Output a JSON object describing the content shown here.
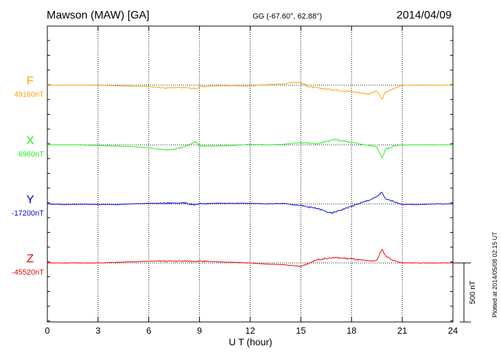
{
  "header": {
    "station": "Mawson (MAW)  [GA]",
    "coords": "GG (-67.60°,  62.88°)",
    "date": "2014/04/09"
  },
  "footer": {
    "xlabel": "U T (hour)",
    "plotted": "Plotted at 2014/05/08 02:15 UT",
    "scale_label": "500 nT"
  },
  "chart_data": {
    "type": "line",
    "xlabel": "U T (hour)",
    "xlim": [
      0,
      24
    ],
    "x_ticks": [
      0,
      3,
      6,
      9,
      12,
      15,
      18,
      21,
      24
    ],
    "grid": "dotted vertical every 3 h, dotted baseline per trace",
    "scale_bar_nT": 500,
    "series": [
      {
        "name": "F",
        "baseline_label": "49160nT",
        "color": "#ffa500",
        "points": [
          [
            0,
            0
          ],
          [
            1,
            0
          ],
          [
            2,
            0
          ],
          [
            3,
            0
          ],
          [
            4,
            -5
          ],
          [
            5,
            -8
          ],
          [
            6,
            -12
          ],
          [
            7,
            -25
          ],
          [
            8,
            -20
          ],
          [
            8.8,
            -30
          ],
          [
            9,
            -15
          ],
          [
            10,
            -5
          ],
          [
            11,
            -5
          ],
          [
            12,
            -8
          ],
          [
            13,
            5
          ],
          [
            14,
            10
          ],
          [
            14.5,
            25
          ],
          [
            15,
            20
          ],
          [
            15.5,
            -15
          ],
          [
            16,
            -25
          ],
          [
            17,
            -40
          ],
          [
            18,
            -55
          ],
          [
            19,
            -75
          ],
          [
            19.5,
            -50
          ],
          [
            19.8,
            -120
          ],
          [
            20,
            -60
          ],
          [
            20.5,
            -30
          ],
          [
            21,
            0
          ],
          [
            22,
            0
          ],
          [
            23,
            0
          ],
          [
            24,
            0
          ]
        ]
      },
      {
        "name": "X",
        "baseline_label": "6960nT",
        "color": "#22ee22",
        "points": [
          [
            0,
            0
          ],
          [
            1,
            0
          ],
          [
            2,
            0
          ],
          [
            3,
            -5
          ],
          [
            4,
            -10
          ],
          [
            5,
            -15
          ],
          [
            6,
            -25
          ],
          [
            7,
            -45
          ],
          [
            7.5,
            -35
          ],
          [
            8,
            -20
          ],
          [
            8.8,
            25
          ],
          [
            9,
            -10
          ],
          [
            10,
            -10
          ],
          [
            11,
            -5
          ],
          [
            12,
            5
          ],
          [
            13,
            0
          ],
          [
            14,
            5
          ],
          [
            15,
            20
          ],
          [
            16,
            10
          ],
          [
            17,
            45
          ],
          [
            18,
            20
          ],
          [
            19,
            -5
          ],
          [
            19.5,
            -20
          ],
          [
            19.8,
            -110
          ],
          [
            20,
            -40
          ],
          [
            20.5,
            -10
          ],
          [
            21,
            0
          ],
          [
            22,
            0
          ],
          [
            23,
            0
          ],
          [
            24,
            0
          ]
        ]
      },
      {
        "name": "Y",
        "baseline_label": "-17200nT",
        "color": "#0000ee",
        "points": [
          [
            0,
            0
          ],
          [
            1,
            -5
          ],
          [
            2,
            -3
          ],
          [
            3,
            -5
          ],
          [
            4,
            -5
          ],
          [
            5,
            0
          ],
          [
            6,
            5
          ],
          [
            7,
            5
          ],
          [
            8,
            10
          ],
          [
            8.8,
            -10
          ],
          [
            9,
            0
          ],
          [
            10,
            5
          ],
          [
            11,
            5
          ],
          [
            12,
            5
          ],
          [
            13,
            0
          ],
          [
            14,
            5
          ],
          [
            15,
            -15
          ],
          [
            16,
            -40
          ],
          [
            16.8,
            -80
          ],
          [
            17.5,
            -45
          ],
          [
            18,
            -20
          ],
          [
            19,
            30
          ],
          [
            19.5,
            60
          ],
          [
            19.8,
            100
          ],
          [
            20,
            40
          ],
          [
            20.5,
            20
          ],
          [
            21,
            -5
          ],
          [
            22,
            -5
          ],
          [
            23,
            0
          ],
          [
            24,
            0
          ]
        ]
      },
      {
        "name": "Z",
        "baseline_label": "-45520nT",
        "color": "#ee0000",
        "points": [
          [
            0,
            0
          ],
          [
            1,
            0
          ],
          [
            2,
            0
          ],
          [
            3,
            0
          ],
          [
            4,
            5
          ],
          [
            5,
            10
          ],
          [
            6,
            15
          ],
          [
            7,
            15
          ],
          [
            8,
            15
          ],
          [
            9,
            15
          ],
          [
            10,
            10
          ],
          [
            11,
            5
          ],
          [
            12,
            0
          ],
          [
            13,
            -10
          ],
          [
            14,
            -15
          ],
          [
            15,
            -30
          ],
          [
            15.5,
            0
          ],
          [
            16,
            30
          ],
          [
            17,
            45
          ],
          [
            18,
            35
          ],
          [
            19,
            15
          ],
          [
            19.5,
            20
          ],
          [
            19.8,
            120
          ],
          [
            20,
            60
          ],
          [
            20.5,
            20
          ],
          [
            21,
            0
          ],
          [
            22,
            0
          ],
          [
            23,
            0
          ],
          [
            24,
            0
          ]
        ]
      }
    ]
  }
}
